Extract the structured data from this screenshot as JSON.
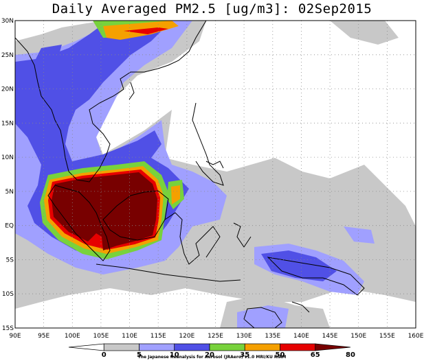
{
  "title": "Daily Averaged PM2.5 [ug/m3]: 02Sep2015",
  "credit": "The Japanese Reanalysis for Aerosol (JRAero) v1.0 MRI/KU RIAM",
  "map": {
    "lon_range": [
      90,
      160
    ],
    "lat_range": [
      -15,
      30
    ],
    "lon_ticks": [
      "90E",
      "95E",
      "100E",
      "105E",
      "110E",
      "115E",
      "120E",
      "125E",
      "130E",
      "135E",
      "140E",
      "145E",
      "150E",
      "155E",
      "160E"
    ],
    "lat_ticks": [
      "30N",
      "25N",
      "20N",
      "15N",
      "10N",
      "5N",
      "EQ",
      "5S",
      "10S",
      "15S"
    ]
  },
  "colorbar": {
    "labels": [
      "0",
      "5",
      "10",
      "20",
      "35",
      "50",
      "65",
      "80"
    ],
    "colors": [
      "#ffffff",
      "#c8c8c8",
      "#a0a0ff",
      "#5050e6",
      "#78d23c",
      "#f5a000",
      "#e60000",
      "#780000"
    ]
  }
}
